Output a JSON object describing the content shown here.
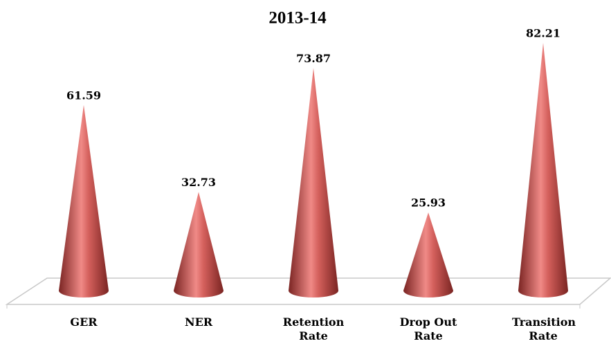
{
  "chart_data": {
    "type": "cone",
    "title": "2013-14",
    "categories": [
      "GER",
      "NER",
      "Retention Rate",
      "Drop Out Rate",
      "Transition Rate"
    ],
    "values": [
      61.59,
      32.73,
      73.87,
      25.93,
      82.21
    ],
    "color": "#c0504d"
  }
}
